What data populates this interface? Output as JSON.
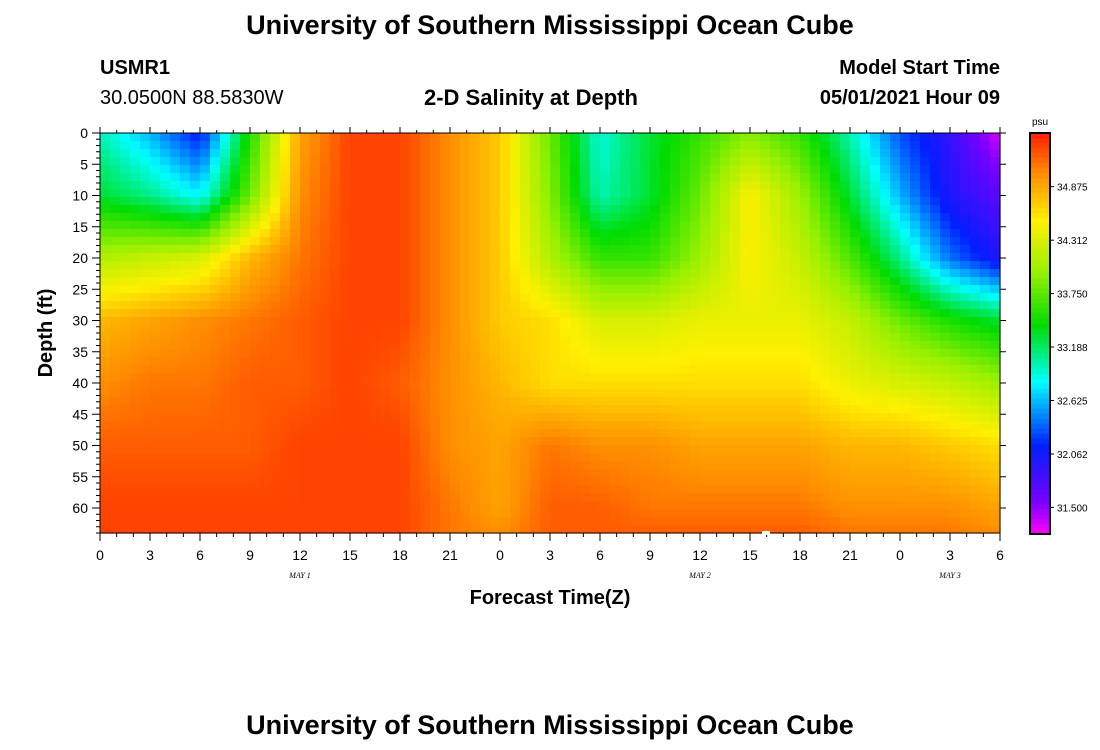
{
  "page": {
    "title_top": "University of Southern Mississippi Ocean Cube",
    "title_bottom": "University of Southern Mississippi Ocean Cube",
    "station_id": "USMR1",
    "station_coords": "30.0500N  88.5830W",
    "model_start_label": "Model Start Time",
    "model_start_value": "05/01/2021 Hour 09"
  },
  "chart_data": {
    "type": "heatmap",
    "title": "2-D Salinity at Depth",
    "xlabel": "Forecast Time(Z)",
    "ylabel": "Depth (ft)",
    "x_range_hours": [
      0,
      54
    ],
    "y_range_ft": [
      0,
      64
    ],
    "x_tick_labels": [
      "0",
      "3",
      "6",
      "9",
      "12",
      "15",
      "18",
      "21",
      "0",
      "3",
      "6",
      "9",
      "12",
      "15",
      "18",
      "21",
      "0",
      "3",
      "6"
    ],
    "y_tick_labels": [
      "0",
      "5",
      "10",
      "15",
      "20",
      "25",
      "30",
      "35",
      "40",
      "45",
      "50",
      "55",
      "60"
    ],
    "date_labels": [
      {
        "label": "MAY 1",
        "hour": 12
      },
      {
        "label": "MAY 2",
        "hour": 36
      },
      {
        "label": "MAY 3",
        "hour": 51
      }
    ],
    "colorbar": {
      "unit": "psu",
      "min": 31.22,
      "max": 35.44,
      "tick_labels": [
        "34.875",
        "34.312",
        "33.750",
        "33.188",
        "32.625",
        "32.062",
        "31.500"
      ],
      "tick_values": [
        34.875,
        34.312,
        33.75,
        33.188,
        32.625,
        32.062,
        31.5
      ]
    },
    "time_hours": [
      0,
      3,
      6,
      9,
      12,
      15,
      18,
      21,
      24,
      27,
      30,
      33,
      36,
      39,
      42,
      45,
      48,
      51,
      54
    ],
    "depth_ft": [
      0,
      10,
      20,
      30,
      40,
      50,
      60,
      64
    ],
    "salinity_psu": [
      [
        33.0,
        32.6,
        32.1,
        33.5,
        34.9,
        35.3,
        35.3,
        35.0,
        34.7,
        33.8,
        32.9,
        33.3,
        33.6,
        33.9,
        33.6,
        33.0,
        32.3,
        31.9,
        31.3
      ],
      [
        33.3,
        33.1,
        32.8,
        33.8,
        35.0,
        35.3,
        35.3,
        35.0,
        34.7,
        33.9,
        33.0,
        33.3,
        33.8,
        34.5,
        34.0,
        33.3,
        32.6,
        32.0,
        31.7
      ],
      [
        34.1,
        34.2,
        34.3,
        34.8,
        35.1,
        35.3,
        35.3,
        35.0,
        34.7,
        34.1,
        33.6,
        33.6,
        34.0,
        34.5,
        34.2,
        33.7,
        33.1,
        32.4,
        32.0
      ],
      [
        34.8,
        34.9,
        35.0,
        35.1,
        35.2,
        35.3,
        35.3,
        35.0,
        34.7,
        34.6,
        34.3,
        34.3,
        34.4,
        34.4,
        34.4,
        34.2,
        33.8,
        33.5,
        33.3
      ],
      [
        35.0,
        35.1,
        35.1,
        35.2,
        35.2,
        35.3,
        35.2,
        35.0,
        34.8,
        34.6,
        34.6,
        34.6,
        34.6,
        34.6,
        34.6,
        34.4,
        34.3,
        34.2,
        34.0
      ],
      [
        35.2,
        35.2,
        35.2,
        35.2,
        35.3,
        35.3,
        35.3,
        35.0,
        34.9,
        35.1,
        35.0,
        35.0,
        34.9,
        34.9,
        34.9,
        34.8,
        34.8,
        34.7,
        34.6
      ],
      [
        35.3,
        35.3,
        35.3,
        35.3,
        35.3,
        35.3,
        35.3,
        35.1,
        34.9,
        35.2,
        35.2,
        35.1,
        35.1,
        35.1,
        35.1,
        35.0,
        35.0,
        35.0,
        34.9
      ],
      [
        35.3,
        35.3,
        35.3,
        35.3,
        35.3,
        35.3,
        35.3,
        35.1,
        35.0,
        35.2,
        35.2,
        35.2,
        35.2,
        35.2,
        35.2,
        35.1,
        35.1,
        35.1,
        35.0
      ]
    ]
  }
}
